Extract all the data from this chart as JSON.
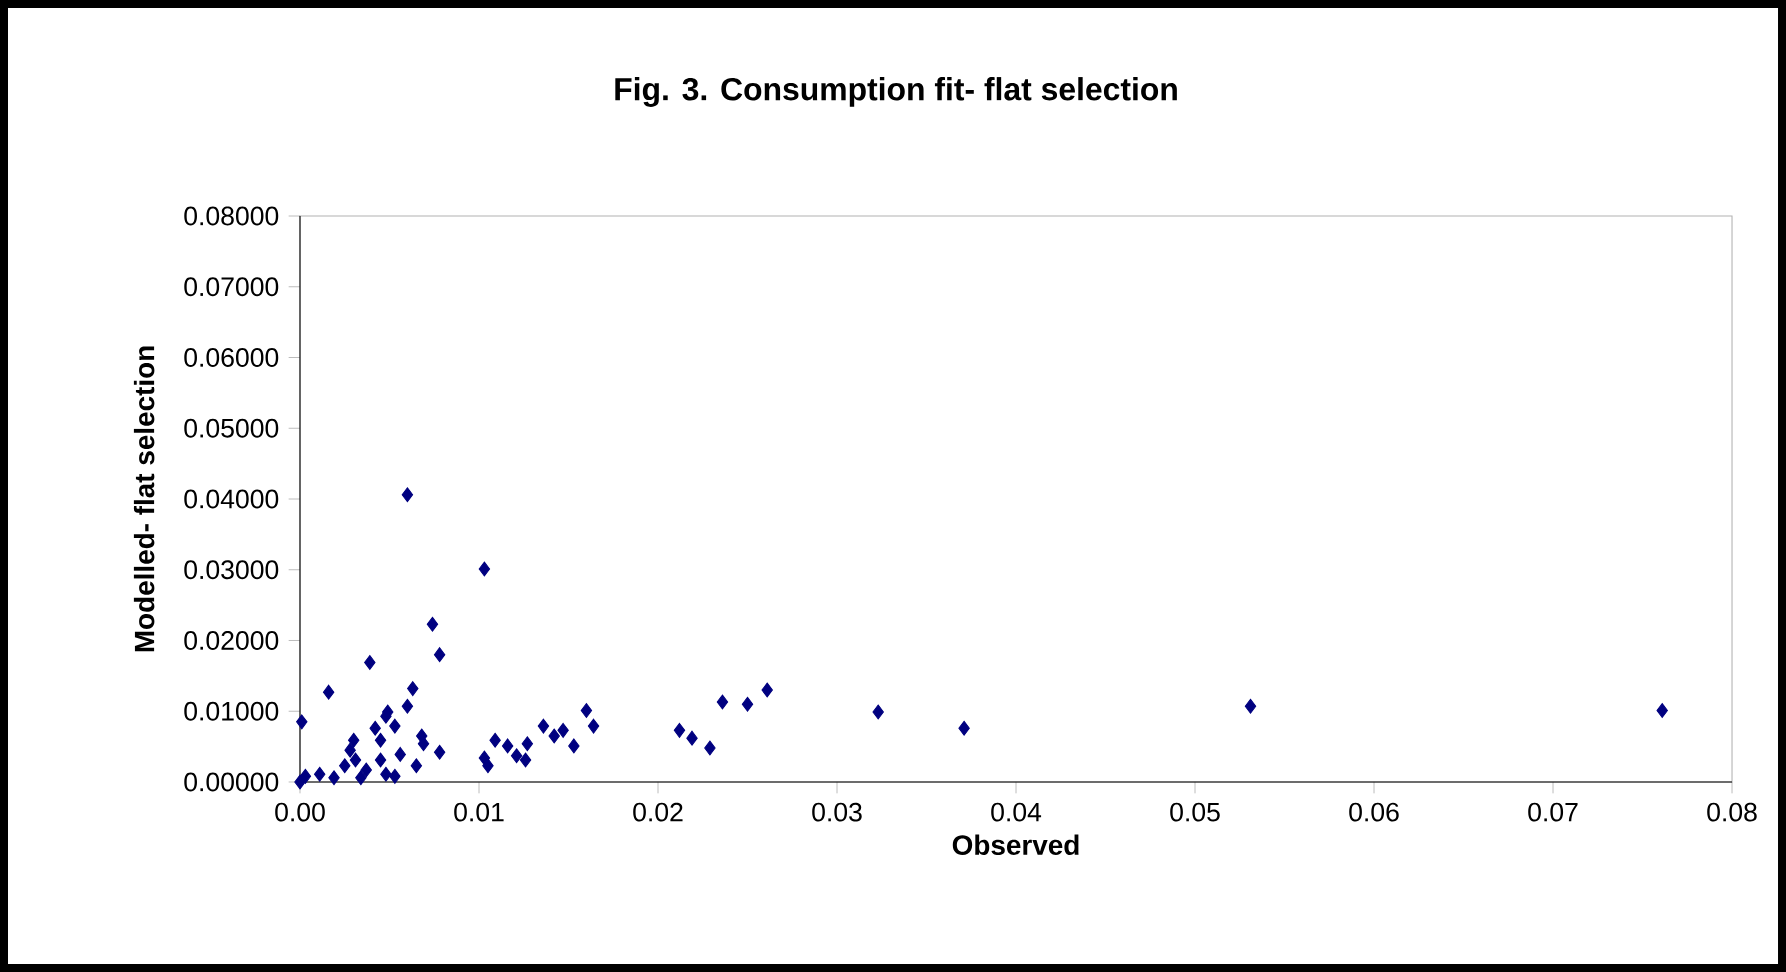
{
  "chart_data": {
    "type": "scatter",
    "title": "Fig. 3. Consumption fit- flat selection",
    "xlabel": "Observed",
    "ylabel": "Modelled- flat selection",
    "marker": "diamond",
    "grid": false,
    "xlim": [
      0,
      0.08
    ],
    "ylim": [
      0,
      0.08
    ],
    "xticks": [
      {
        "value": 0,
        "label": "0.00"
      },
      {
        "value": 0.01,
        "label": "0.01"
      },
      {
        "value": 0.02,
        "label": "0.02"
      },
      {
        "value": 0.03,
        "label": "0.03"
      },
      {
        "value": 0.04,
        "label": "0.04"
      },
      {
        "value": 0.05,
        "label": "0.05"
      },
      {
        "value": 0.06,
        "label": "0.06"
      },
      {
        "value": 0.07,
        "label": "0.07"
      },
      {
        "value": 0.08,
        "label": "0.08"
      }
    ],
    "yticks": [
      {
        "value": 0,
        "label": "0.00000"
      },
      {
        "value": 0.01,
        "label": "0.01000"
      },
      {
        "value": 0.02,
        "label": "0.02000"
      },
      {
        "value": 0.03,
        "label": "0.03000"
      },
      {
        "value": 0.04,
        "label": "0.04000"
      },
      {
        "value": 0.05,
        "label": "0.05000"
      },
      {
        "value": 0.06,
        "label": "0.06000"
      },
      {
        "value": 0.07,
        "label": "0.07000"
      },
      {
        "value": 0.08,
        "label": "0.08000"
      }
    ],
    "series": [
      {
        "color": "#000080",
        "x": [
          0.006,
          0.0103,
          0.0074,
          0.0078,
          0.0039,
          0.0016,
          0.0001,
          0.0063,
          0.006,
          0.0049,
          0.0048,
          0.0042,
          0.0068,
          0.0069,
          0.0078,
          0.0103,
          0.0105,
          0.0109,
          0.0116,
          0.0121,
          0.0126,
          0.0127,
          0.0136,
          0.0142,
          0.0147,
          0.0153,
          0.016,
          0.0164,
          0.0212,
          0.0028,
          0.0031,
          0.0025,
          0.0045,
          0.0048,
          0.0037,
          0.0065,
          0.0056,
          0.0011,
          0.0003,
          0.0019,
          0.0034,
          0.0,
          0.0053,
          0.003,
          0.0045,
          0.0053,
          0.0219,
          0.0229,
          0.0236,
          0.025,
          0.0261,
          0.0323,
          0.0371,
          0.0531,
          0.0761
        ],
        "values": [
          0.0406,
          0.0301,
          0.0223,
          0.018,
          0.0169,
          0.0127,
          0.0085,
          0.0132,
          0.0107,
          0.0099,
          0.0093,
          0.0076,
          0.0065,
          0.0054,
          0.0042,
          0.0034,
          0.0023,
          0.0059,
          0.0051,
          0.0037,
          0.0031,
          0.0054,
          0.0079,
          0.0065,
          0.0073,
          0.0051,
          0.0101,
          0.0079,
          0.0073,
          0.0045,
          0.0031,
          0.0023,
          0.0031,
          0.0011,
          0.0017,
          0.0023,
          0.0039,
          0.0011,
          0.0008,
          0.0006,
          0.0006,
          0.0,
          0.0008,
          0.0059,
          0.0059,
          0.0079,
          0.0062,
          0.0048,
          0.0113,
          0.011,
          0.013,
          0.0099,
          0.0076,
          0.0107,
          0.0101
        ]
      }
    ]
  }
}
